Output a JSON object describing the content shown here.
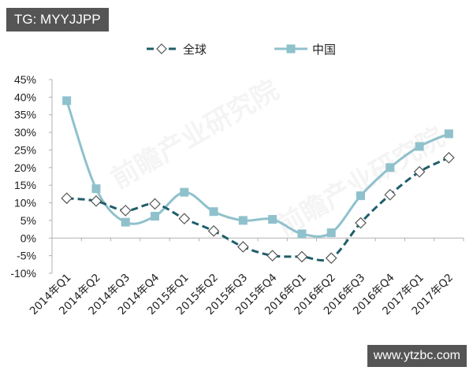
{
  "overlays": {
    "top_left_label": "TG: MYYJJPP",
    "bottom_right_url": "www.ytzbc.com",
    "watermark_text": "前瞻产业研究院"
  },
  "colors": {
    "global": "#1f5e6b",
    "china": "#8fc1cc",
    "axis": "#b0b0b0",
    "tick_text": "#222222"
  },
  "chart_data": {
    "type": "line",
    "title": "",
    "xlabel": "",
    "ylabel": "",
    "categories": [
      "2014年Q1",
      "2014年Q2",
      "2014年Q3",
      "2014年Q4",
      "2015年Q1",
      "2015年Q2",
      "2015年Q3",
      "2015年Q4",
      "2016年Q1",
      "2016年Q2",
      "2016年Q3",
      "2016年Q4",
      "2017年Q1",
      "2017年Q2"
    ],
    "ylim": [
      -10,
      45
    ],
    "yticks": [
      "45%",
      "40%",
      "35%",
      "30%",
      "25%",
      "20%",
      "15%",
      "10%",
      "5%",
      "0%",
      "-5%",
      "-10%"
    ],
    "ytick_values": [
      45,
      40,
      35,
      30,
      25,
      20,
      15,
      10,
      5,
      0,
      -5,
      -10
    ],
    "grid": false,
    "legend_position": "top",
    "series": [
      {
        "name": "全球",
        "style": "dashed",
        "marker": "diamond-open",
        "values": [
          11.3,
          10.5,
          7.8,
          9.7,
          5.5,
          2.0,
          -2.5,
          -5.0,
          -5.3,
          -5.7,
          4.3,
          12.3,
          18.8,
          22.8
        ]
      },
      {
        "name": "中国",
        "style": "solid",
        "marker": "square",
        "values": [
          39.0,
          14.0,
          4.5,
          6.2,
          13.0,
          7.5,
          5.0,
          5.3,
          1.2,
          1.5,
          12.0,
          20.0,
          26.0,
          29.6
        ]
      }
    ]
  }
}
